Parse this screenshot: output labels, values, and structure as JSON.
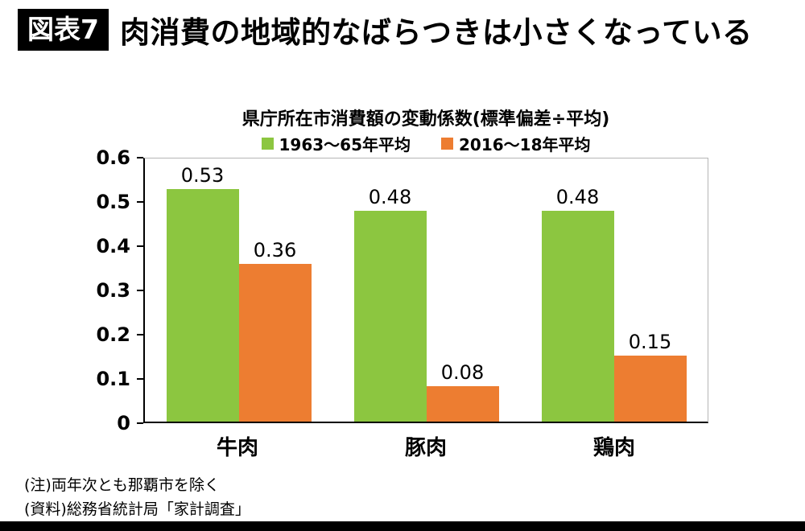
{
  "header": {
    "badge": "図表7",
    "title": "肉消費の地域的なばらつきは小さくなっている"
  },
  "chart_data": {
    "type": "bar",
    "title": "県庁所在市消費額の変動係数(標準偏差÷平均)",
    "categories": [
      "牛肉",
      "豚肉",
      "鶏肉"
    ],
    "series": [
      {
        "name": "1963〜65年平均",
        "color": "#8CC640",
        "values": [
          0.53,
          0.48,
          0.48
        ]
      },
      {
        "name": "2016〜18年平均",
        "color": "#ED7D31",
        "values": [
          0.36,
          0.08,
          0.15
        ]
      }
    ],
    "ylim": [
      0,
      0.6
    ],
    "yticks": [
      "0",
      "0.1",
      "0.2",
      "0.3",
      "0.4",
      "0.5",
      "0.6"
    ],
    "legend_position": "top",
    "grid": false
  },
  "notes": [
    "(注)両年次とも那覇市を除く",
    "(資料)総務省統計局「家計調査」"
  ]
}
